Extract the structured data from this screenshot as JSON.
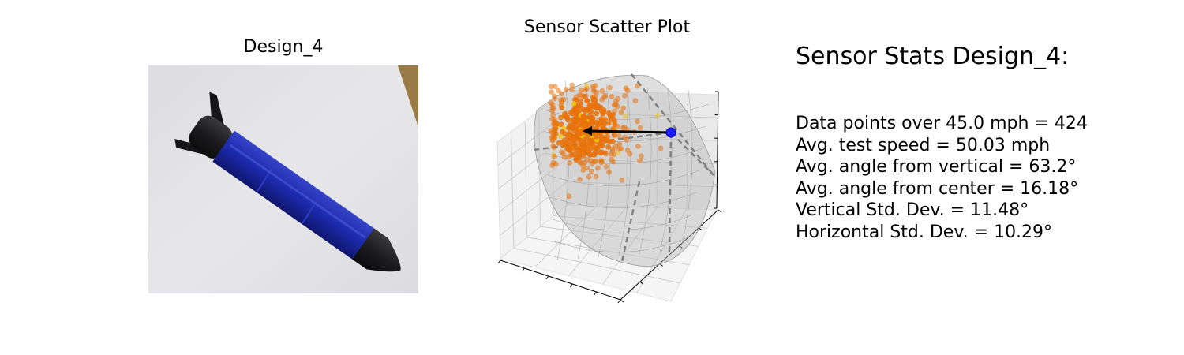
{
  "figure": {
    "photo_title": "Design_4",
    "photo_subject": "3D-printed projectile: black nose cone and fins, blue taped body, on white paper",
    "scatter_title": "Sensor Scatter Plot",
    "stats_title": "Sensor Stats Design_4:",
    "stats": [
      "Data points over 45.0 mph = 424",
      "Avg. test speed = 50.03 mph",
      "Avg. angle from vertical = 63.2°",
      "Avg. angle from center = 16.18°",
      "Vertical Std. Dev. = 11.48°",
      "Horizontal Std. Dev. = 10.29°"
    ]
  },
  "chart_data": {
    "type": "scatter",
    "projection": "3d",
    "title": "Sensor Scatter Plot",
    "xlabel": "",
    "ylabel": "",
    "zlabel": "",
    "tick_labels_shown": false,
    "grid": true,
    "legend": "none",
    "point_count": 424,
    "avg_angle_from_vertical_deg": 63.2,
    "avg_angle_from_center_deg": 16.18,
    "vertical_std_dev_deg": 11.48,
    "horizontal_std_dev_deg": 10.29,
    "colors": {
      "points": "#e8730c",
      "points_alt": "#f2c511",
      "center_marker": "#1a1aff",
      "mean_vector": "#000000",
      "sphere": "#b8b8b8",
      "guide_lines": "#7f7f7f",
      "pane_left": "#f2f2f2",
      "pane_right": "#e9e9e9",
      "pane_floor": "#f5f5f5",
      "grid": "#c8c8c8"
    }
  }
}
